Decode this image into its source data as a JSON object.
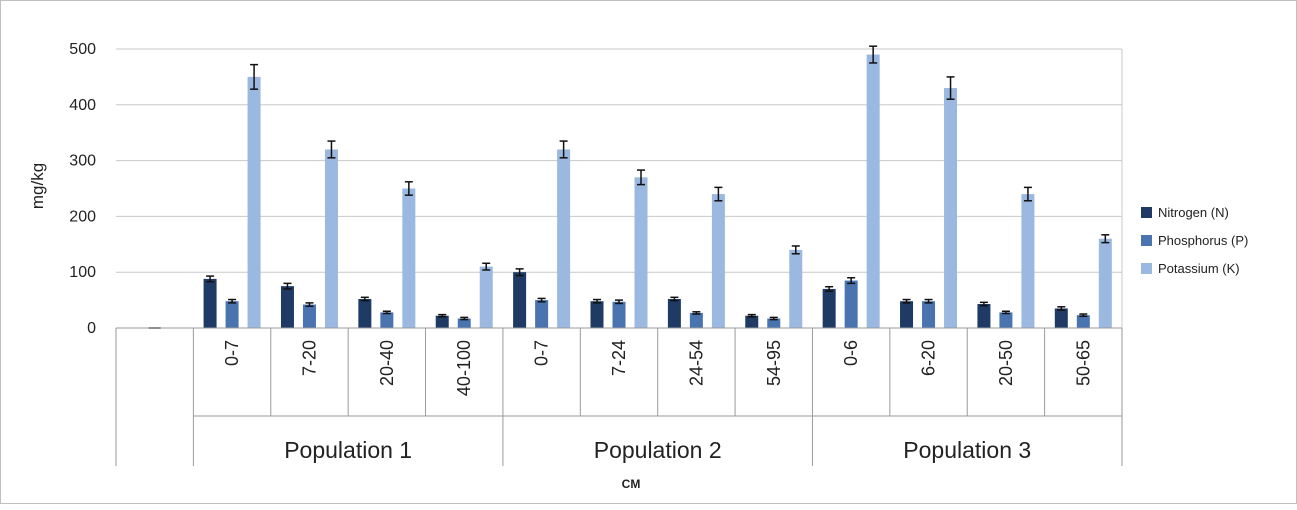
{
  "chart_data": {
    "type": "bar",
    "title": "",
    "ylabel": "mg/kg",
    "xlabel": "CM",
    "ylim": [
      0,
      500
    ],
    "yticks": [
      0,
      100,
      200,
      300,
      400,
      500
    ],
    "grid": true,
    "legend_position": "right",
    "groups": [
      {
        "name": "",
        "categories": [
          ""
        ]
      },
      {
        "name": "Population 1",
        "categories": [
          "0-7",
          "7-20",
          "20-40",
          "40-100"
        ]
      },
      {
        "name": "Population 2",
        "categories": [
          "0-7",
          "7-24",
          "24-54",
          "54-95"
        ]
      },
      {
        "name": "Population 3",
        "categories": [
          "0-6",
          "6-20",
          "20-50",
          "50-65"
        ]
      }
    ],
    "series": [
      {
        "name": "Nitrogen (N)",
        "color": "#1f3a64",
        "values": [
          0,
          88,
          75,
          52,
          22,
          100,
          48,
          52,
          22,
          70,
          48,
          43,
          35
        ],
        "errors": [
          0,
          5,
          5,
          3,
          2,
          6,
          3,
          3,
          2,
          4,
          3,
          3,
          3
        ]
      },
      {
        "name": "Phosphorus (P)",
        "color": "#4a74b0",
        "values": [
          0,
          48,
          42,
          28,
          17,
          50,
          47,
          27,
          17,
          85,
          48,
          28,
          23
        ],
        "errors": [
          0,
          3,
          3,
          2,
          2,
          3,
          3,
          2,
          2,
          5,
          3,
          2,
          2
        ]
      },
      {
        "name": "Potassium (K)",
        "color": "#9ab8e0",
        "values": [
          0,
          450,
          320,
          250,
          110,
          320,
          270,
          240,
          140,
          490,
          430,
          240,
          160
        ],
        "errors": [
          0,
          22,
          15,
          12,
          6,
          15,
          13,
          12,
          7,
          15,
          20,
          12,
          7
        ]
      }
    ]
  }
}
